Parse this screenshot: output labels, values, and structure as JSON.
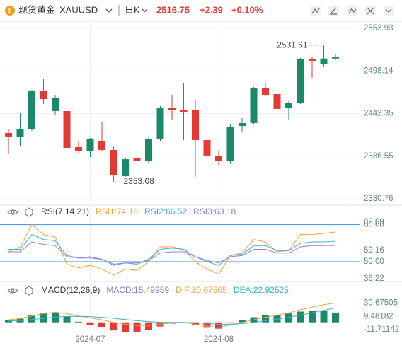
{
  "header": {
    "title": "现货黄金",
    "symbol": "XAUUSD",
    "period": "日K",
    "price": "2516.75",
    "change": "+2.39",
    "change_pct": "+0.10%"
  },
  "chart_data": [
    {
      "type": "candlestick",
      "categories": [
        null,
        null,
        null,
        null,
        null,
        null,
        null,
        "2024-07",
        null,
        null,
        null,
        null,
        null,
        null,
        null,
        null,
        null,
        null,
        "2024-08",
        null,
        null,
        null,
        null,
        null,
        null,
        null,
        null,
        null,
        null
      ],
      "open": [
        2416.9,
        2412.3,
        2421.5,
        2471.5,
        2445.6,
        2445.6,
        2398.4,
        2393.7,
        2406.7,
        2394.7,
        2360.4,
        2383.6,
        2379.8,
        2409.5,
        2449.3,
        2447.4,
        2447.4,
        2407.6,
        2387.3,
        2379.8,
        2426.1,
        2429.9,
        2476.2,
        2467.8,
        2450.2,
        2456.7,
        2514.1,
        2507.6,
        2514.4
      ],
      "high": [
        2421.5,
        2442.8,
        2473.4,
        2487.3,
        2466.0,
        2447.4,
        2405.8,
        2410.4,
        2431.7,
        2398.4,
        2385.4,
        2403.9,
        2412.3,
        2452.1,
        2466.0,
        2481.7,
        2459.5,
        2412.3,
        2392.8,
        2428.0,
        2436.3,
        2477.1,
        2481.7,
        2482.6,
        2458.6,
        2515.0,
        2516.9,
        2531.61,
        2519.7
      ],
      "low": [
        2389.1,
        2399.3,
        2419.7,
        2454.9,
        2440.0,
        2392.8,
        2391.0,
        2385.4,
        2392.8,
        2353.08,
        2359.5,
        2368.7,
        2378.0,
        2405.8,
        2433.6,
        2407.6,
        2359.5,
        2382.6,
        2375.2,
        2376.1,
        2418.7,
        2428.0,
        2465.0,
        2438.2,
        2434.5,
        2454.9,
        2489.1,
        2503.0,
        2512.0
      ],
      "close": [
        2412.3,
        2421.5,
        2471.5,
        2461.3,
        2463.2,
        2397.4,
        2393.7,
        2408.6,
        2394.7,
        2361.3,
        2382.6,
        2379.8,
        2408.6,
        2449.3,
        2447.4,
        2444.7,
        2407.6,
        2387.3,
        2379.8,
        2425.2,
        2429.9,
        2476.2,
        2466.9,
        2448.4,
        2456.7,
        2513.2,
        2511.3,
        2514.36,
        2516.75
      ],
      "up_color": "#1b8a6b",
      "down_color": "#e53935",
      "ylim": [
        2330.76,
        2553.93
      ],
      "yticks": [
        2553.93,
        2498.14,
        2442.35,
        2386.55,
        2330.76
      ],
      "grid": true
    },
    {
      "type": "line",
      "title": "RSI(7,14,21)",
      "series": [
        {
          "name": "RSI1:74.16",
          "color": "#f5a23c",
          "values": [
            58,
            62,
            80,
            72,
            70,
            48,
            45,
            47,
            44,
            39,
            44,
            43,
            50,
            62,
            62,
            60,
            50,
            44,
            40,
            55,
            57,
            68,
            66,
            58,
            59,
            72,
            72,
            73,
            74.16
          ]
        },
        {
          "name": "RSI2:66.52",
          "color": "#39b6c6",
          "values": [
            60,
            60,
            72,
            68,
            67,
            55,
            53,
            54,
            52,
            47,
            49,
            48,
            52,
            60,
            61,
            60,
            54,
            50,
            47,
            55,
            56,
            63,
            63,
            59,
            59,
            65,
            66,
            66,
            66.52
          ]
        },
        {
          "name": "RSI3:63.18",
          "color": "#9a7fd1",
          "values": [
            58,
            58,
            66,
            64,
            63,
            54,
            53,
            53,
            52,
            48,
            49,
            49,
            51,
            57,
            58,
            58,
            54,
            51,
            49,
            54,
            55,
            60,
            60,
            57,
            57,
            62,
            63,
            63,
            63.18
          ]
        }
      ],
      "ylim": [
        36.22,
        82.09
      ],
      "yticks": [
        {
          "value": 80,
          "label": "80.00"
        },
        82.09,
        59.16,
        {
          "value": 50,
          "label": "50.00"
        },
        36.22
      ],
      "reference_lines": [
        80,
        50
      ],
      "reference_color": "#3a8ee6"
    },
    {
      "type": "macd",
      "title": "MACD(12,26,9)",
      "series": [
        {
          "name": "MACD:15.49959",
          "color": "#8d7bd0",
          "kind": "bar",
          "positive_color": "#1b8a6b",
          "negative_color": "#e53935",
          "values": [
            4,
            6,
            11.2,
            15.4,
            15.6,
            9.2,
            1,
            -4,
            -8,
            -12.8,
            -15,
            -15.2,
            -12.2,
            -6.6,
            -2,
            0,
            -4.8,
            -8.6,
            -10,
            -1.6,
            4,
            8,
            11,
            12,
            14,
            17,
            18,
            18,
            15.49959
          ]
        },
        {
          "name": "DIF:30.67505",
          "color": "#f5a23c",
          "kind": "line",
          "values": [
            4,
            6,
            10,
            14,
            16,
            14,
            10,
            7,
            4,
            0,
            -3,
            -5,
            -5,
            -3,
            -1,
            0,
            -3,
            -6,
            -8,
            -4,
            0,
            4,
            8,
            11,
            15,
            20,
            24,
            28,
            30.67505
          ]
        },
        {
          "name": "DEA:22.92525",
          "color": "#39b6c6",
          "kind": "line",
          "values": [
            2,
            3,
            4.4,
            6.3,
            8.2,
            9.4,
            9.5,
            9,
            8,
            6.4,
            4.5,
            2.6,
            1.1,
            0.3,
            0,
            0,
            -0.6,
            -1.7,
            -3,
            -3.2,
            -2,
            0,
            2.5,
            5,
            8,
            11.5,
            15,
            19,
            22.92525
          ]
        }
      ],
      "ylim": [
        -16,
        40
      ],
      "yticks": [
        30.67505,
        9.48182,
        -11.71142
      ]
    }
  ]
}
